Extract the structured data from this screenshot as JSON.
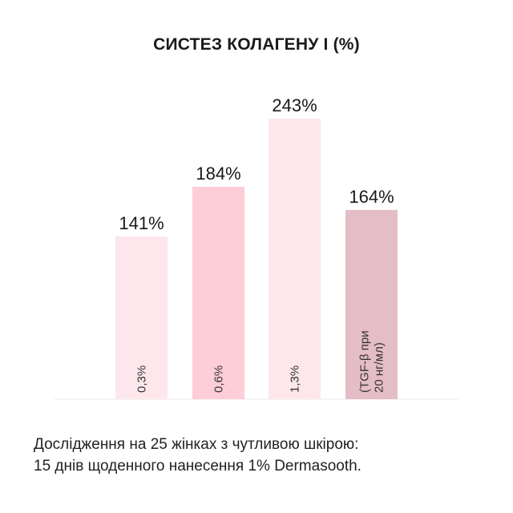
{
  "title": "СИСТЕЗ КОЛАГЕНУ I (%)",
  "chart_data": {
    "type": "bar",
    "title": "СИСТЕЗ КОЛАГЕНУ I (%)",
    "categories": [
      "0,3%",
      "0,6%",
      "1,3%",
      "(TGF-β при 20 нг/мл)"
    ],
    "category_lines": [
      [
        "0,3%"
      ],
      [
        "0,6%"
      ],
      [
        "1,3%"
      ],
      [
        "(TGF-β при",
        "20 нг/мл)"
      ]
    ],
    "values": [
      141,
      184,
      243,
      164
    ],
    "value_labels": [
      "141%",
      "184%",
      "243%",
      "164%"
    ],
    "colors": [
      "#fde7ec",
      "#fdcdd8",
      "#fde7ec",
      "#e5bdc6"
    ],
    "ylim": [
      0,
      260
    ],
    "xlabel": "",
    "ylabel": "",
    "grid": false,
    "legend": "none"
  },
  "caption": {
    "line1": "Дослідження на 25 жінках з чутливою шкірою:",
    "line2": "15 днів щоденного нанесення 1% Dermasooth."
  }
}
